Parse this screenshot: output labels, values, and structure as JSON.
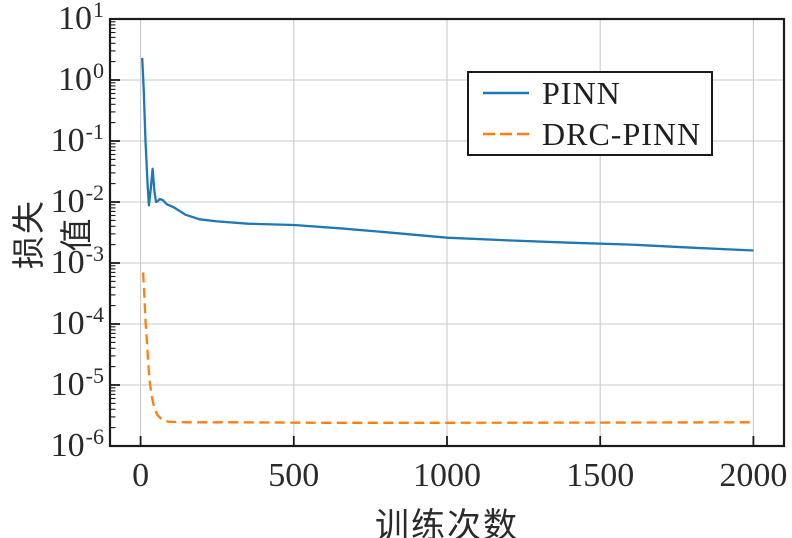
{
  "chart_data": {
    "type": "line",
    "xlabel": "训练次数",
    "ylabel": "损失值",
    "x_ticks": [
      0,
      500,
      1000,
      1500,
      2000
    ],
    "y_tick_exponents": [
      1,
      0,
      -1,
      -2,
      -3,
      -4,
      -5,
      -6
    ],
    "log_base_label": "10",
    "xlim": [
      -100,
      2100
    ],
    "ylim_log": [
      -6,
      1
    ],
    "grid": true,
    "legend_position": "upper right",
    "colors": {
      "pinn": "#1f77b4",
      "drc_pinn": "#ff7f0e",
      "grid": "#c9c9c9",
      "axis": "#1a1a1a",
      "text": "#2a2a2a",
      "background": "#ffffff"
    },
    "series": [
      {
        "name": "PINN",
        "style": "solid",
        "color_key": "pinn",
        "points": [
          [
            5,
            2.3
          ],
          [
            10,
            0.7
          ],
          [
            16,
            0.1
          ],
          [
            22,
            0.022
          ],
          [
            27,
            0.0088
          ],
          [
            33,
            0.016
          ],
          [
            39,
            0.035
          ],
          [
            45,
            0.015
          ],
          [
            50,
            0.01
          ],
          [
            56,
            0.0103
          ],
          [
            62,
            0.0112
          ],
          [
            72,
            0.0108
          ],
          [
            85,
            0.0092
          ],
          [
            110,
            0.0081
          ],
          [
            146,
            0.0062
          ],
          [
            192,
            0.0052
          ],
          [
            250,
            0.0048
          ],
          [
            350,
            0.0044
          ],
          [
            500,
            0.0042
          ],
          [
            650,
            0.0037
          ],
          [
            800,
            0.0032
          ],
          [
            1000,
            0.0026
          ],
          [
            1200,
            0.00235
          ],
          [
            1400,
            0.00215
          ],
          [
            1600,
            0.002
          ],
          [
            1800,
            0.00178
          ],
          [
            2000,
            0.0016
          ]
        ]
      },
      {
        "name": "DRC-PINN",
        "style": "dashed",
        "color_key": "drc_pinn",
        "points": [
          [
            8,
            0.0007
          ],
          [
            12,
            0.0003
          ],
          [
            16,
            0.00011
          ],
          [
            20,
            5.5e-05
          ],
          [
            25,
            2.2e-05
          ],
          [
            30,
            1.1e-05
          ],
          [
            36,
            6.5e-06
          ],
          [
            45,
            4.2e-06
          ],
          [
            55,
            3.2e-06
          ],
          [
            70,
            2.7e-06
          ],
          [
            90,
            2.5e-06
          ],
          [
            150,
            2.45e-06
          ],
          [
            300,
            2.45e-06
          ],
          [
            600,
            2.4e-06
          ],
          [
            1000,
            2.4e-06
          ],
          [
            1500,
            2.42e-06
          ],
          [
            2000,
            2.45e-06
          ]
        ]
      }
    ]
  }
}
